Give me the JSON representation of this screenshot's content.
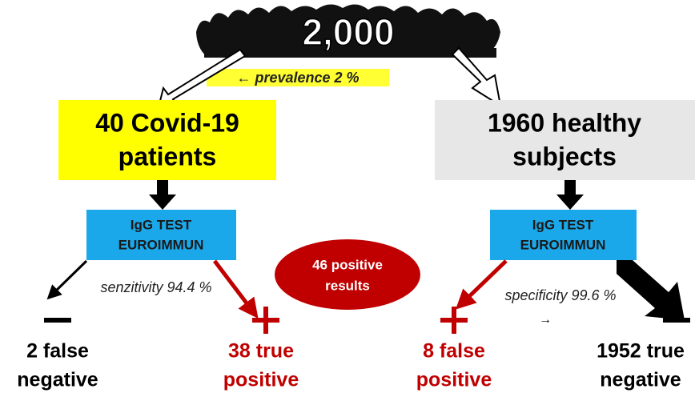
{
  "population": "2,000",
  "prevalence": "← prevalence 2 %",
  "nodes": {
    "covid": {
      "lines": [
        "40 Covid-19",
        "patients"
      ]
    },
    "healthy": {
      "lines": [
        "1960 healthy",
        "subjects"
      ]
    },
    "test_left": {
      "lines": [
        "IgG TEST",
        "EUROIMMUN"
      ]
    },
    "test_right": {
      "lines": [
        "IgG TEST",
        "EUROIMMUN"
      ]
    },
    "positive": {
      "lines": [
        "46 positive",
        "results"
      ]
    }
  },
  "sensitivity": "senzitivity 94.4 %",
  "specificity": "specificity 99.6 %",
  "specificity_arrow": "→",
  "outcomes": [
    {
      "lines": [
        "2 false",
        "negative"
      ]
    },
    {
      "lines": [
        "38 true",
        "positive"
      ]
    },
    {
      "lines": [
        "8 false",
        "positive"
      ]
    },
    {
      "lines": [
        "1952 true",
        "negative"
      ]
    }
  ]
}
